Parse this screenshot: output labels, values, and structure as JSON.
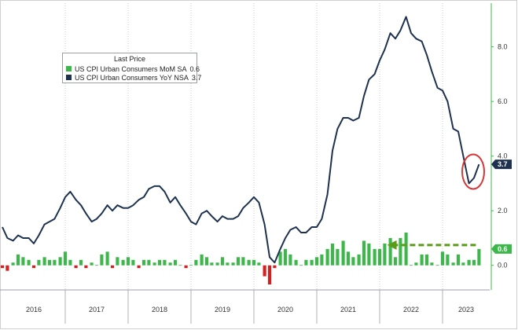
{
  "chart_data": {
    "type": "bar+line",
    "legend": {
      "title": "Last Price",
      "placement": "top-left",
      "entries": [
        {
          "label": "US CPI Urban Consumers MoM SA",
          "value": "0.6",
          "color": "#3cb84a"
        },
        {
          "label": "US CPI Urban Consumers YoY NSA",
          "value": "3.7",
          "color": "#1e3250"
        }
      ]
    },
    "x_tick_labels": [
      "2016",
      "2017",
      "2018",
      "2019",
      "2020",
      "2021",
      "2022",
      "2023"
    ],
    "y_tick_labels": [
      "0.0",
      "2.0",
      "4.0",
      "6.0",
      "8.0"
    ],
    "ylim": [
      -0.9,
      9.6
    ],
    "xlim": [
      2016.0,
      2023.75
    ],
    "grid": "vertical dotted",
    "last_value_tags": [
      {
        "label": "3.7",
        "color": "#1e3250"
      },
      {
        "label": "0.6",
        "color": "#3cb84a"
      }
    ],
    "series": [
      {
        "name": "US CPI Urban Consumers YoY NSA",
        "type": "line",
        "color": "#1e3250",
        "x": [
          2016.0,
          2016.08,
          2016.17,
          2016.25,
          2016.33,
          2016.42,
          2016.5,
          2016.58,
          2016.67,
          2016.75,
          2016.83,
          2016.92,
          2017.0,
          2017.08,
          2017.17,
          2017.25,
          2017.33,
          2017.42,
          2017.5,
          2017.58,
          2017.67,
          2017.75,
          2017.83,
          2017.92,
          2018.0,
          2018.08,
          2018.17,
          2018.25,
          2018.33,
          2018.42,
          2018.5,
          2018.58,
          2018.67,
          2018.75,
          2018.83,
          2018.92,
          2019.0,
          2019.08,
          2019.17,
          2019.25,
          2019.33,
          2019.42,
          2019.5,
          2019.58,
          2019.67,
          2019.75,
          2019.83,
          2019.92,
          2020.0,
          2020.08,
          2020.17,
          2020.25,
          2020.33,
          2020.42,
          2020.5,
          2020.58,
          2020.67,
          2020.75,
          2020.83,
          2020.92,
          2021.0,
          2021.08,
          2021.17,
          2021.25,
          2021.33,
          2021.42,
          2021.5,
          2021.58,
          2021.67,
          2021.75,
          2021.83,
          2021.92,
          2022.0,
          2022.08,
          2022.17,
          2022.25,
          2022.33,
          2022.42,
          2022.5,
          2022.58,
          2022.67,
          2022.75,
          2022.83,
          2022.92,
          2023.0,
          2023.08,
          2023.17,
          2023.25,
          2023.33,
          2023.42,
          2023.5,
          2023.58
        ],
        "values": [
          1.4,
          1.0,
          0.9,
          1.1,
          1.0,
          1.0,
          0.8,
          1.1,
          1.5,
          1.6,
          1.7,
          2.1,
          2.5,
          2.7,
          2.4,
          2.2,
          1.9,
          1.6,
          1.7,
          1.9,
          2.2,
          2.0,
          2.2,
          2.1,
          2.1,
          2.2,
          2.4,
          2.5,
          2.8,
          2.9,
          2.9,
          2.7,
          2.3,
          2.5,
          2.2,
          1.9,
          1.6,
          1.5,
          1.9,
          2.0,
          1.8,
          1.6,
          1.8,
          1.7,
          1.7,
          1.8,
          2.1,
          2.3,
          2.5,
          2.3,
          1.5,
          0.3,
          0.1,
          0.6,
          1.0,
          1.3,
          1.4,
          1.2,
          1.2,
          1.4,
          1.4,
          1.7,
          2.6,
          4.2,
          5.0,
          5.4,
          5.4,
          5.3,
          5.4,
          6.2,
          6.8,
          7.0,
          7.5,
          7.9,
          8.5,
          8.3,
          8.6,
          9.1,
          8.5,
          8.3,
          8.2,
          7.7,
          7.1,
          6.5,
          6.4,
          6.0,
          5.0,
          4.9,
          4.0,
          3.0,
          3.2,
          3.7
        ]
      },
      {
        "name": "US CPI Urban Consumers MoM SA",
        "type": "bar",
        "color_positive": "#3cb84a",
        "color_negative": "#d42020",
        "x": [
          2016.0,
          2016.08,
          2016.17,
          2016.25,
          2016.33,
          2016.42,
          2016.5,
          2016.58,
          2016.67,
          2016.75,
          2016.83,
          2016.92,
          2017.0,
          2017.08,
          2017.17,
          2017.25,
          2017.33,
          2017.42,
          2017.5,
          2017.58,
          2017.67,
          2017.75,
          2017.83,
          2017.92,
          2018.0,
          2018.08,
          2018.17,
          2018.25,
          2018.33,
          2018.42,
          2018.5,
          2018.58,
          2018.67,
          2018.75,
          2018.83,
          2018.92,
          2019.0,
          2019.08,
          2019.17,
          2019.25,
          2019.33,
          2019.42,
          2019.5,
          2019.58,
          2019.67,
          2019.75,
          2019.83,
          2019.92,
          2020.0,
          2020.08,
          2020.17,
          2020.25,
          2020.33,
          2020.42,
          2020.5,
          2020.58,
          2020.67,
          2020.75,
          2020.83,
          2020.92,
          2021.0,
          2021.08,
          2021.17,
          2021.25,
          2021.33,
          2021.42,
          2021.5,
          2021.58,
          2021.67,
          2021.75,
          2021.83,
          2021.92,
          2022.0,
          2022.08,
          2022.17,
          2022.25,
          2022.33,
          2022.42,
          2022.5,
          2022.58,
          2022.67,
          2022.75,
          2022.83,
          2022.92,
          2023.0,
          2023.08,
          2023.17,
          2023.25,
          2023.33,
          2023.42,
          2023.5,
          2023.58
        ],
        "values": [
          -0.1,
          -0.2,
          0.1,
          0.4,
          0.3,
          0.2,
          -0.1,
          0.2,
          0.3,
          0.2,
          0.2,
          0.3,
          0.5,
          0.2,
          -0.1,
          0.2,
          -0.1,
          0.1,
          0.0,
          0.4,
          0.5,
          -0.1,
          0.3,
          0.2,
          0.3,
          0.2,
          -0.1,
          0.2,
          0.2,
          0.1,
          0.2,
          0.2,
          0.1,
          0.2,
          0.0,
          -0.1,
          0.0,
          0.2,
          0.4,
          0.3,
          0.1,
          0.1,
          0.3,
          0.1,
          0.1,
          0.3,
          0.3,
          0.2,
          0.2,
          0.1,
          -0.4,
          -0.7,
          -0.1,
          0.5,
          0.6,
          0.4,
          0.2,
          0.0,
          0.2,
          0.2,
          0.3,
          0.4,
          0.6,
          0.8,
          0.6,
          0.9,
          0.5,
          0.3,
          0.4,
          0.9,
          0.8,
          0.6,
          0.6,
          0.8,
          1.0,
          0.3,
          1.0,
          1.2,
          0.0,
          0.1,
          0.4,
          0.4,
          0.1,
          0.0,
          0.5,
          0.4,
          0.1,
          0.4,
          0.1,
          0.2,
          0.2,
          0.6
        ]
      }
    ]
  }
}
